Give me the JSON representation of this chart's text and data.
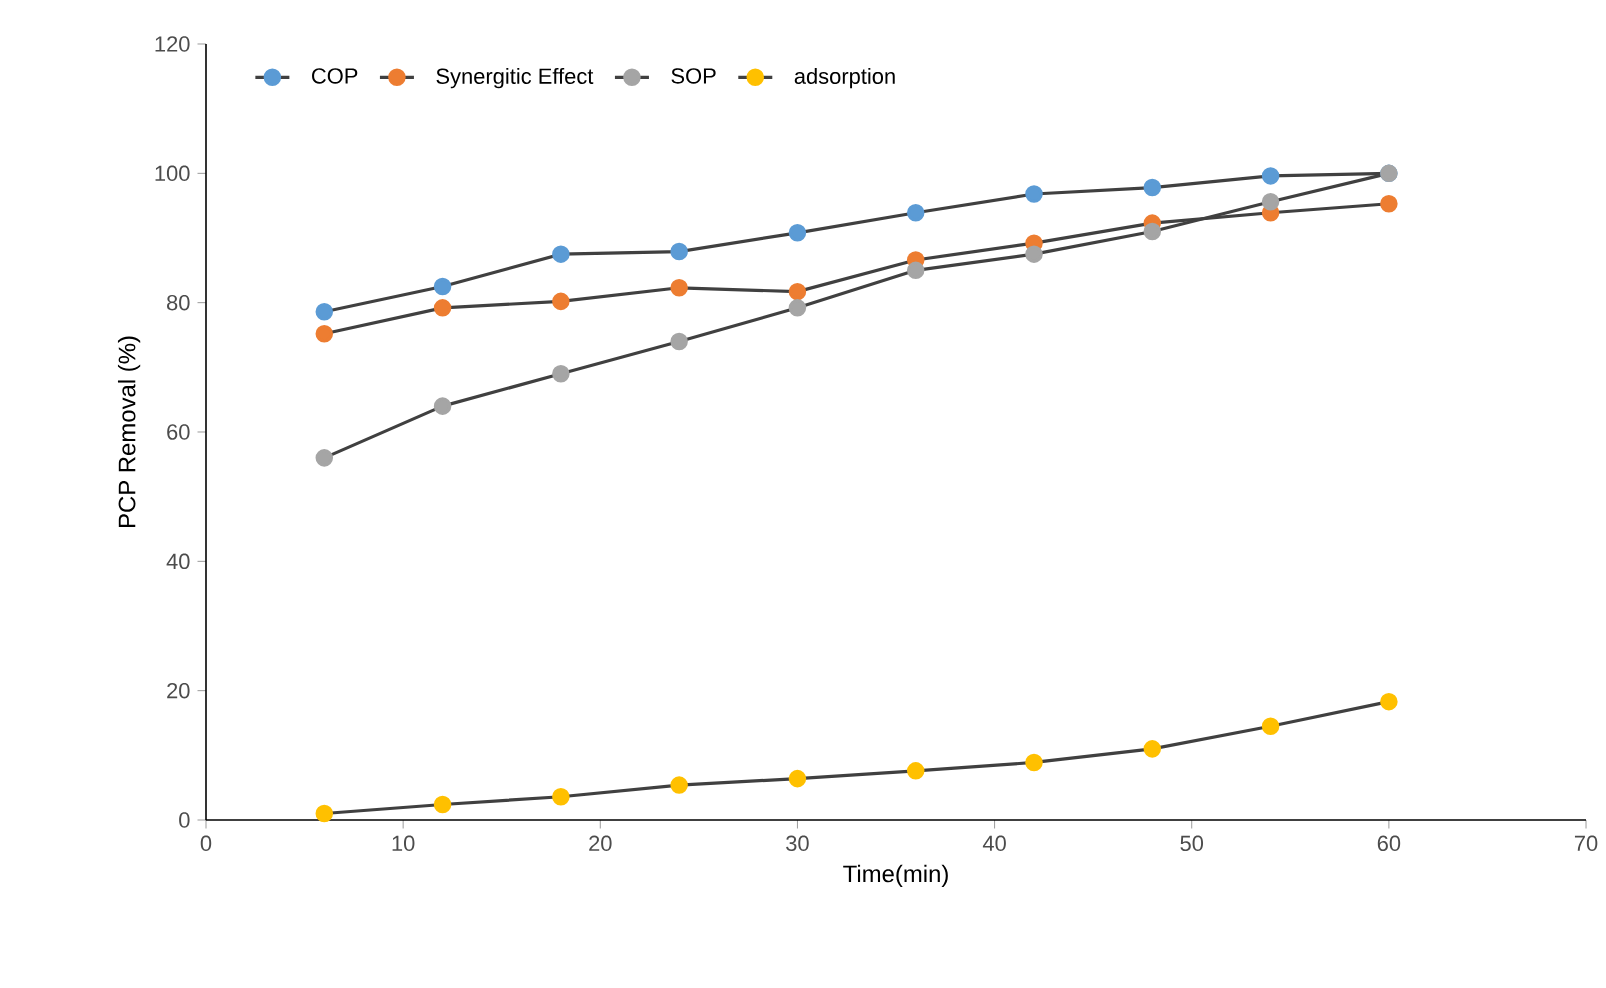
{
  "chart_data": {
    "type": "line",
    "xlabel": "Time(min)",
    "ylabel": "PCP Removal (%)",
    "x": [
      6,
      12,
      18,
      24,
      30,
      36,
      42,
      48,
      54,
      60
    ],
    "series": [
      {
        "name": "COP",
        "color": "#5b9bd5",
        "values": [
          78.6,
          82.5,
          87.5,
          87.9,
          90.8,
          93.9,
          96.8,
          97.8,
          99.6,
          100
        ]
      },
      {
        "name": "Synergitic Effect",
        "color": "#ed7d31",
        "values": [
          75.2,
          79.2,
          80.2,
          82.3,
          81.7,
          86.6,
          89.2,
          92.3,
          93.9,
          95.3
        ]
      },
      {
        "name": "SOP",
        "color": "#a5a5a5",
        "values": [
          56,
          64,
          69,
          74,
          79.2,
          85,
          87.5,
          91,
          95.6,
          100
        ]
      },
      {
        "name": "adsorption",
        "color": "#ffc000",
        "values": [
          1,
          2.4,
          3.6,
          5.4,
          6.4,
          7.6,
          8.9,
          11,
          14.5,
          18.3
        ]
      }
    ],
    "xlim": [
      0,
      70
    ],
    "xticks": [
      0,
      10,
      20,
      30,
      40,
      50,
      60,
      70
    ],
    "ylim": [
      0,
      120
    ],
    "yticks": [
      0,
      20,
      40,
      60,
      80,
      100,
      120
    ],
    "legend": "top left",
    "marker": "circle",
    "line_style": "solid",
    "grid": false
  }
}
